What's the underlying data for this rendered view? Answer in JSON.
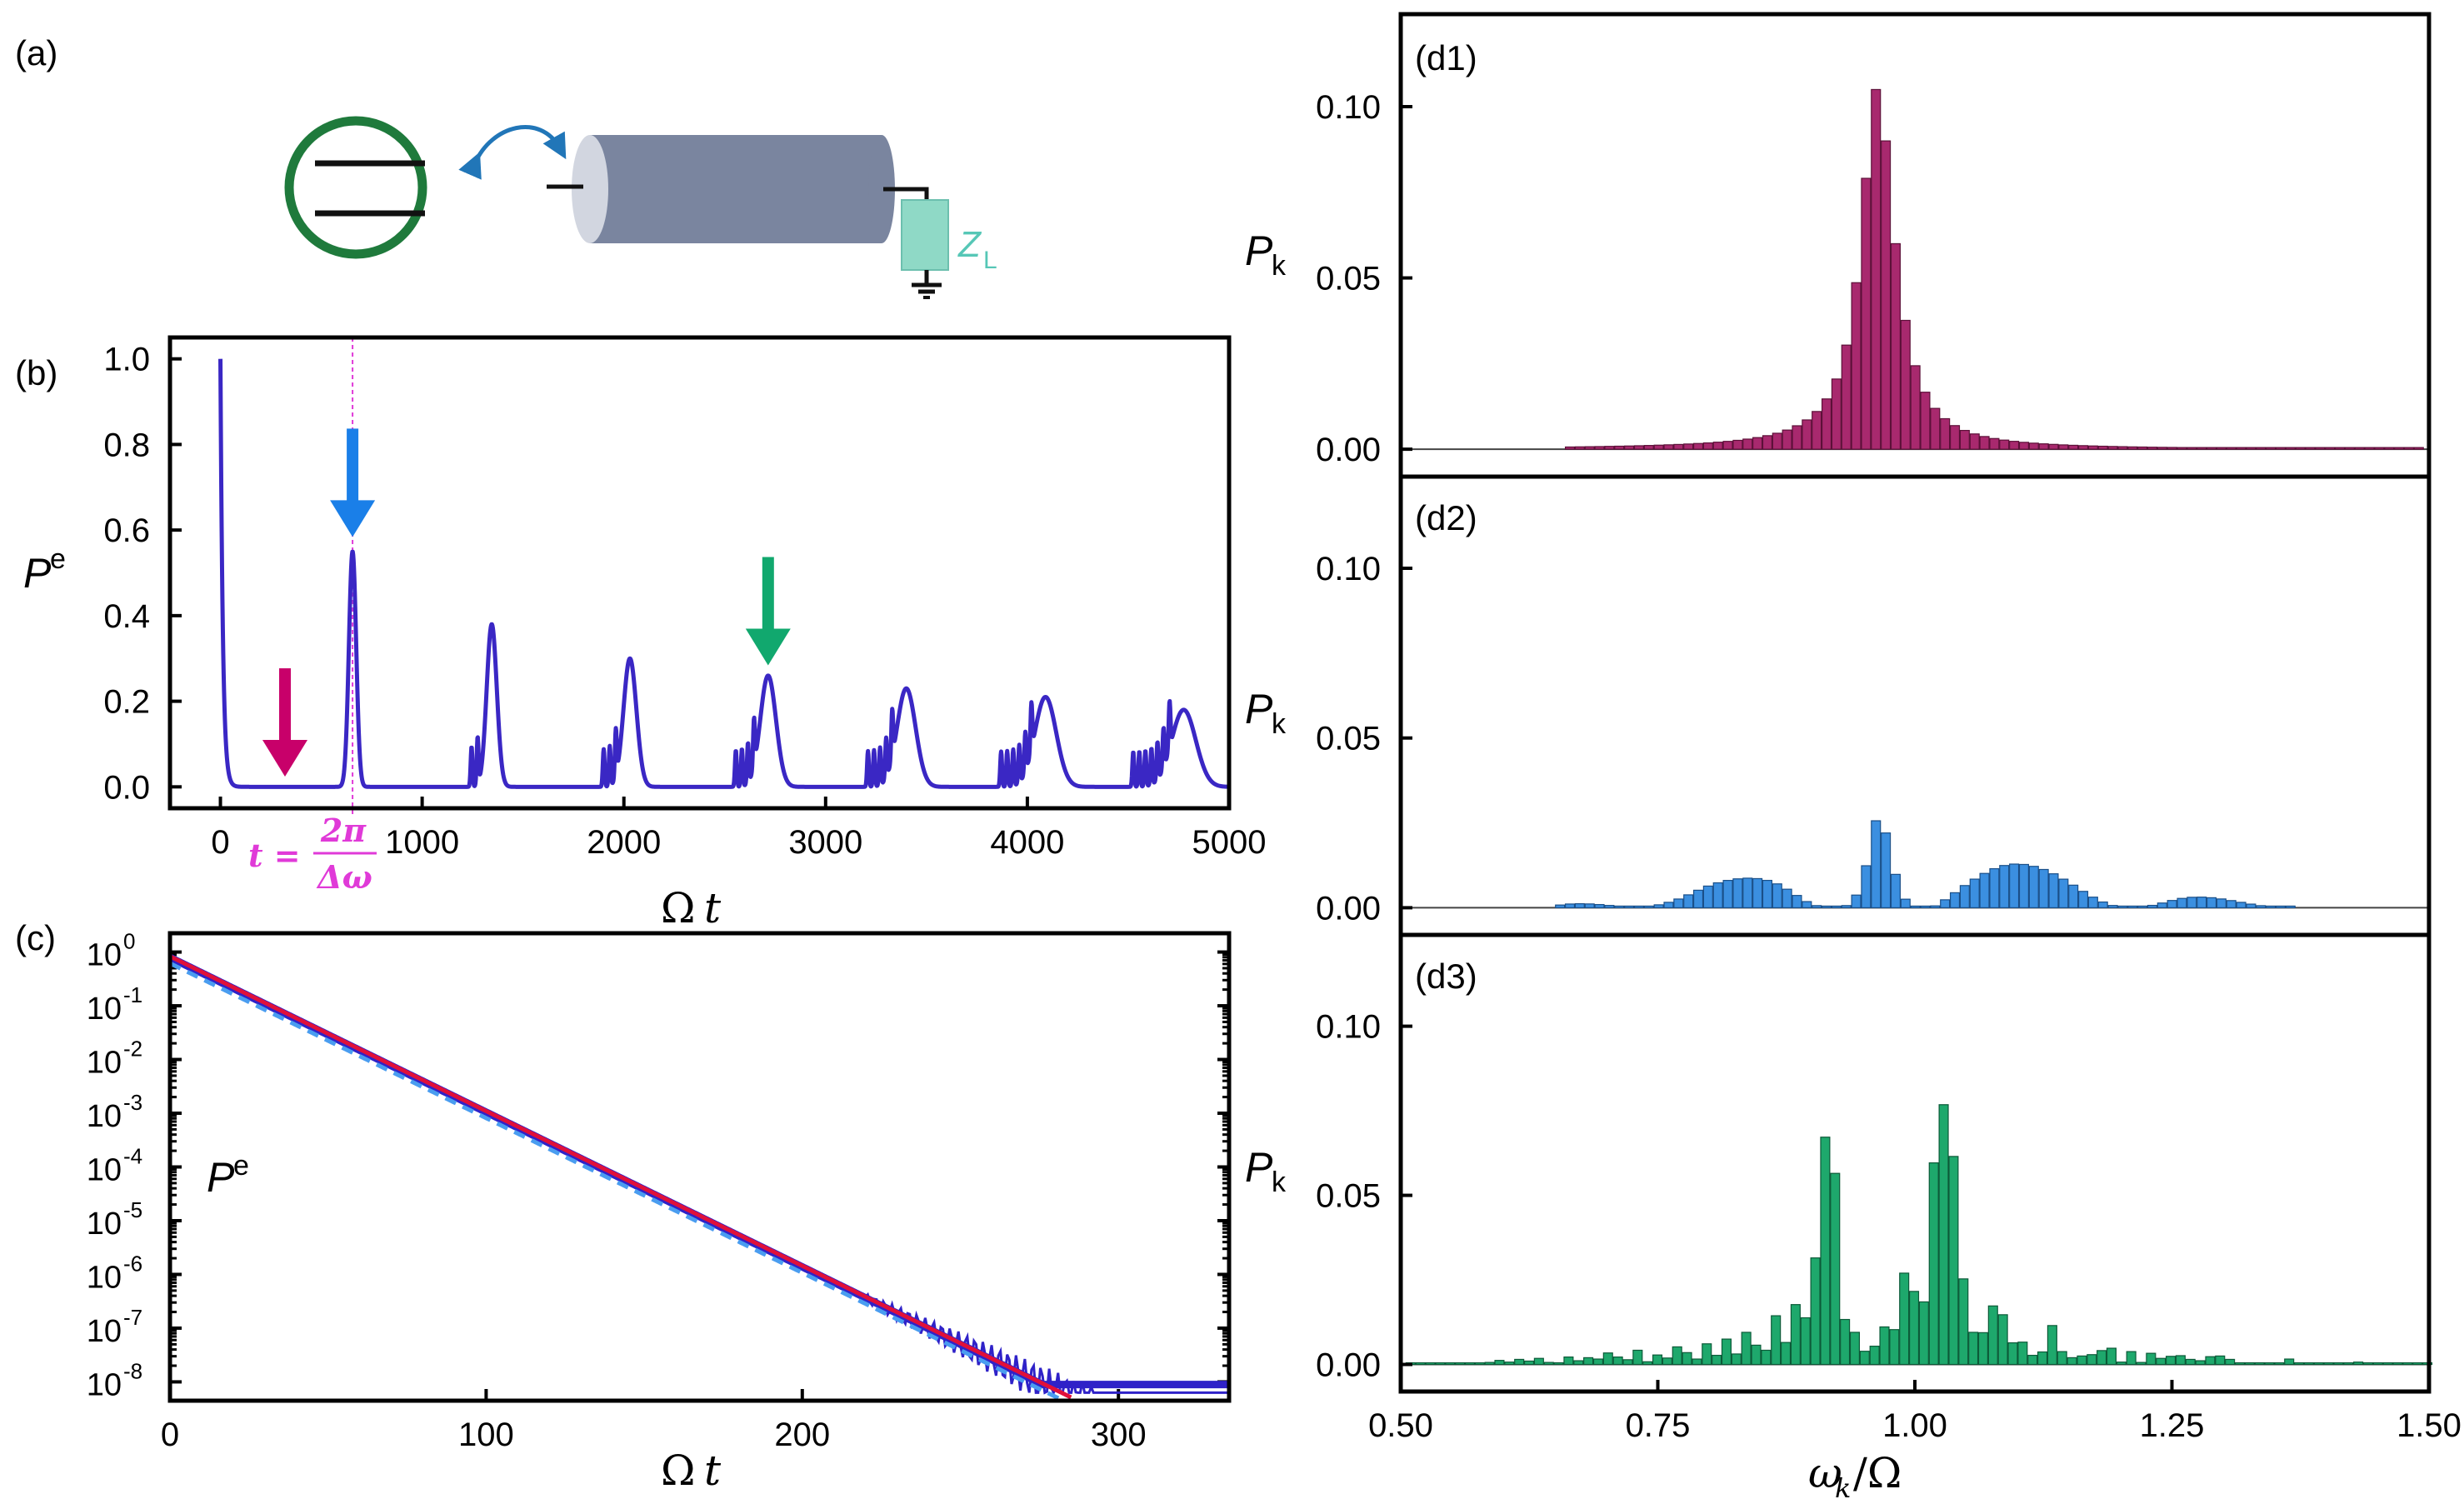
{
  "colors": {
    "blue_curve": "#3a27c4",
    "arrow_magenta": "#c8006a",
    "arrow_blue": "#1a7fe8",
    "arrow_green": "#11a86e",
    "annot_magenta": "#e03ad8",
    "fit_red": "#e0103a",
    "dash_blue": "#4a9df0",
    "bar_d1": "#a8296e",
    "bar_d2": "#3b8fe0",
    "bar_d3": "#1ea86c",
    "atom_ring": "#1f7a3c",
    "cylinder": "#7a859f",
    "load": "#8fd9c6"
  },
  "panel_a": {
    "label": "(a)",
    "load_symbol": "Z",
    "load_subscript": "L",
    "icons": [
      "atom-circle-icon",
      "coupling-arrow-icon",
      "coaxial-cable-icon",
      "load-resistor-icon",
      "ground-icon"
    ]
  },
  "chart_data": [
    {
      "id": "b",
      "type": "line",
      "label": "(b)",
      "xlabel_main": "Ω",
      "xlabel_var": "t",
      "ylabel_main": "P",
      "ylabel_sub": "e",
      "xlim": [
        -250,
        5000
      ],
      "ylim": [
        -0.05,
        1.05
      ],
      "xticks": [
        0,
        1000,
        2000,
        3000,
        4000,
        5000
      ],
      "xtick_labels": [
        "0",
        "1000",
        "2000",
        "3000",
        "4000",
        "5000"
      ],
      "yticks": [
        0.0,
        0.2,
        0.4,
        0.6,
        0.8,
        1.0
      ],
      "ytick_labels": [
        "0.0",
        "0.2",
        "0.4",
        "0.6",
        "0.8",
        "1.0"
      ],
      "revival_period": 655,
      "revival_peaks": [
        {
          "t": 655,
          "value": 0.55
        },
        {
          "t": 1345,
          "value": 0.38
        },
        {
          "t": 2030,
          "value": 0.3
        },
        {
          "t": 2715,
          "value": 0.26
        },
        {
          "t": 3400,
          "value": 0.23
        },
        {
          "t": 4090,
          "value": 0.21
        },
        {
          "t": 4775,
          "value": 0.18
        }
      ],
      "arrows": [
        {
          "t": 320,
          "color": "arrow_magenta",
          "tip": 0.02
        },
        {
          "t": 655,
          "color": "arrow_blue",
          "tip": 0.58
        },
        {
          "t": 2715,
          "color": "arrow_green",
          "tip": 0.28
        }
      ],
      "annotation": {
        "t": 655,
        "lhs": "t =",
        "num": "2π",
        "den": "Δω"
      }
    },
    {
      "id": "c",
      "type": "line",
      "label": "(c)",
      "yscale": "log",
      "xlabel_main": "Ω",
      "xlabel_var": "t",
      "ylabel_main": "P",
      "ylabel_sub": "e",
      "xlim": [
        0,
        335
      ],
      "ylim_exp": [
        -8.35,
        0.35
      ],
      "xticks": [
        0,
        100,
        200,
        300
      ],
      "xtick_labels": [
        "0",
        "100",
        "200",
        "300"
      ],
      "ytick_exponents": [
        0,
        -1,
        -2,
        -3,
        -4,
        -5,
        -6,
        -7,
        -8
      ],
      "ytick_base": "10",
      "decay_start_exp": -0.1,
      "decay_slope_exp_per_unit": -0.0288,
      "fit_end": 285,
      "noise_floor_exp": -8.1
    },
    {
      "id": "d1",
      "type": "bar",
      "label": "(d1)",
      "ylabel_main": "P",
      "ylabel_sub": "k",
      "xlim": [
        0.5,
        1.5
      ],
      "ylim": [
        -0.008,
        0.127
      ],
      "yticks": [
        0.0,
        0.05,
        0.1
      ],
      "ytick_labels": [
        "0.00",
        "0.05",
        "0.10"
      ],
      "center": 0.9625,
      "spacing": 0.0096,
      "values": [
        0.00065,
        0.00069,
        0.00073,
        0.00077,
        0.00083,
        0.00088,
        0.00094,
        0.00101,
        0.00109,
        0.00118,
        0.00128,
        0.00139,
        0.00152,
        0.00167,
        0.00184,
        0.00205,
        0.00229,
        0.00259,
        0.00295,
        0.00339,
        0.00395,
        0.00466,
        0.00559,
        0.00684,
        0.00855,
        0.01101,
        0.01468,
        0.02049,
        0.03039,
        0.04861,
        0.07908,
        0.105,
        0.09,
        0.06,
        0.03761,
        0.02437,
        0.01664,
        0.01192,
        0.00891,
        0.00689,
        0.00548,
        0.00446,
        0.0037,
        0.00312,
        0.00266,
        0.0023,
        0.00201,
        0.00177,
        0.00157,
        0.00141,
        0.00126,
        0.00114,
        0.00104,
        0.00095,
        0.00087,
        0.0008,
        0.00074,
        0.00068,
        0.00064,
        0.00059,
        0.00055,
        0.00052,
        0.00049,
        0.00046,
        0.00043,
        0.00041,
        0.00039,
        0.00036,
        0.00035,
        0.00033,
        0.00031,
        0.0003,
        0.00028,
        0.00027,
        0.00026,
        0.00025,
        0.00024,
        0.00023,
        0.00022,
        0.00021,
        0.0002,
        0.0002,
        0.00019,
        0.00018,
        0.00018,
        0.00017,
        0.00016,
        0.00016,
        0.00015,
        0.00015,
        0.00014,
        0.00014,
        0.00013,
        0.00013,
        0.00013,
        0.00012,
        0.00012,
        0.00012,
        0.00011,
        0.00011,
        0.00011,
        0.0001,
        0.0001,
        0.0001,
        0.0001
      ]
    },
    {
      "id": "d2",
      "type": "bar",
      "label": "(d2)",
      "ylabel_main": "P",
      "ylabel_sub": "k",
      "xlim": [
        0.5,
        1.5
      ],
      "ylim": [
        -0.008,
        0.127
      ],
      "yticks": [
        0.0,
        0.05,
        0.1
      ],
      "ytick_labels": [
        "0.00",
        "0.05",
        "0.10"
      ],
      "center": 0.9625,
      "spacing": 0.0096,
      "values": [
        0.0008,
        0.0011,
        0.00118,
        0.00112,
        0.00094,
        0.00068,
        0.0004,
        0.00015,
        0.0,
        0.0003,
        0.00086,
        0.0016,
        0.00257,
        0.0038,
        0.00516,
        0.00638,
        0.00734,
        0.00805,
        0.00851,
        0.00871,
        0.00858,
        0.00806,
        0.00703,
        0.00546,
        0.00362,
        0.00181,
        0.00063,
        0.00018,
        0.00012,
        0.00064,
        0.00373,
        0.01237,
        0.02562,
        0.02203,
        0.00983,
        0.00252,
        0.00036,
        0.00021,
        0.00055,
        0.00234,
        0.00442,
        0.00653,
        0.00843,
        0.01011,
        0.0115,
        0.01244,
        0.01286,
        0.01275,
        0.01219,
        0.01127,
        0.01,
        0.00842,
        0.00665,
        0.00482,
        0.00312,
        0.00169,
        0.00067,
        0.0001,
        0.0,
        0.0002,
        0.0007,
        0.00139,
        0.00214,
        0.00275,
        0.00308,
        0.00313,
        0.00295,
        0.00259,
        0.00211,
        0.00159,
        0.00107,
        0.00061,
        0.00025,
        3e-05,
        0.0
      ]
    },
    {
      "id": "d3",
      "type": "bar",
      "label": "(d3)",
      "xlabel_main": "ω",
      "xlabel_sub": "k",
      "xlabel_rest": "/Ω",
      "ylabel_main": "P",
      "ylabel_sub": "k",
      "xlim": [
        0.5,
        1.5
      ],
      "ylim": [
        -0.008,
        0.127
      ],
      "yticks": [
        0.0,
        0.05,
        0.1
      ],
      "ytick_labels": [
        "0.00",
        "0.05",
        "0.10"
      ],
      "xticks": [
        0.5,
        0.75,
        1.0,
        1.25,
        1.5
      ],
      "xtick_labels": [
        "0.50",
        "0.75",
        "1.00",
        "1.25",
        "1.50"
      ],
      "center": 0.9625,
      "spacing": 0.0096,
      "values": [
        0.0002,
        0.0001,
        0.0003,
        0.0,
        0.0002,
        0.0003,
        0.0004,
        0.0002,
        0.0006,
        0.0012,
        0.0007,
        0.0015,
        0.001,
        0.0018,
        0.0006,
        0.0005,
        0.0022,
        0.0011,
        0.002,
        0.0016,
        0.0034,
        0.0022,
        0.0014,
        0.0042,
        0.0008,
        0.0028,
        0.0019,
        0.0052,
        0.0035,
        0.0016,
        0.0061,
        0.0027,
        0.0075,
        0.0031,
        0.0095,
        0.0057,
        0.0042,
        0.0144,
        0.0065,
        0.0177,
        0.0138,
        0.0315,
        0.0672,
        0.0565,
        0.0133,
        0.0095,
        0.0039,
        0.0054,
        0.0111,
        0.0103,
        0.027,
        0.0216,
        0.0185,
        0.0596,
        0.0768,
        0.0615,
        0.0253,
        0.0095,
        0.0094,
        0.0173,
        0.0147,
        0.0064,
        0.0066,
        0.0027,
        0.0037,
        0.0115,
        0.0038,
        0.002,
        0.0025,
        0.0029,
        0.0041,
        0.0048,
        0.0007,
        0.0038,
        0.0006,
        0.0033,
        0.0018,
        0.0024,
        0.0026,
        0.0015,
        0.0011,
        0.0023,
        0.0025,
        0.0015,
        0.0005,
        0.0005,
        0.0005,
        0.0002,
        0.0004,
        0.0016,
        0.0004,
        0.0003,
        0.0004,
        0.0002,
        0.0004,
        0.0003,
        0.0007,
        0.0004,
        0.0002,
        0.0003,
        0.0004,
        0.0003,
        0.0003,
        0.0003
      ]
    }
  ]
}
